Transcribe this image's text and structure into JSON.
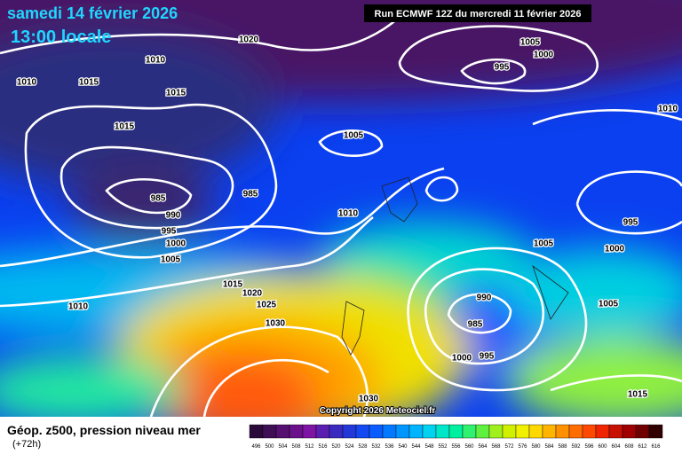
{
  "header": {
    "date": "samedi 14 février 2026",
    "time": "13:00 locale",
    "run": "Run ECMWF 12Z du mercredi 11 février 2026"
  },
  "copyright": "Copyright 2026 Meteociel.fr",
  "footer": {
    "field": "Géop. z500, pression niveau mer",
    "lead": "(+72h)"
  },
  "isobar_labels": [
    1020,
    1010,
    1010,
    1015,
    1015,
    1015,
    1005,
    985,
    985,
    990,
    995,
    1000,
    1005,
    1010,
    1015,
    1020,
    1025,
    1030,
    1010,
    1005,
    1000,
    995,
    1010,
    995,
    1005,
    1000,
    1005,
    990,
    985,
    1000,
    995,
    1030,
    1015
  ],
  "colorbar": {
    "labels": [
      496,
      500,
      504,
      508,
      512,
      516,
      520,
      524,
      528,
      532,
      536,
      540,
      544,
      548,
      552,
      556,
      560,
      564,
      568,
      572,
      576,
      580,
      584,
      588,
      592,
      596,
      600,
      604,
      608,
      612,
      616
    ],
    "colors": [
      "#2a0a3a",
      "#3e0f55",
      "#551070",
      "#6a108a",
      "#7d14a3",
      "#5a1fb0",
      "#3a2ac0",
      "#2338d8",
      "#1448f0",
      "#0a5cff",
      "#0078ff",
      "#0096ff",
      "#00b4ff",
      "#00d2f0",
      "#00e6c8",
      "#00f0a0",
      "#30f070",
      "#60f040",
      "#a0f020",
      "#d0f000",
      "#f0f000",
      "#ffd800",
      "#ffb400",
      "#ff9000",
      "#ff6c00",
      "#ff4800",
      "#f02400",
      "#c81000",
      "#a00000",
      "#700000",
      "#300000"
    ]
  }
}
